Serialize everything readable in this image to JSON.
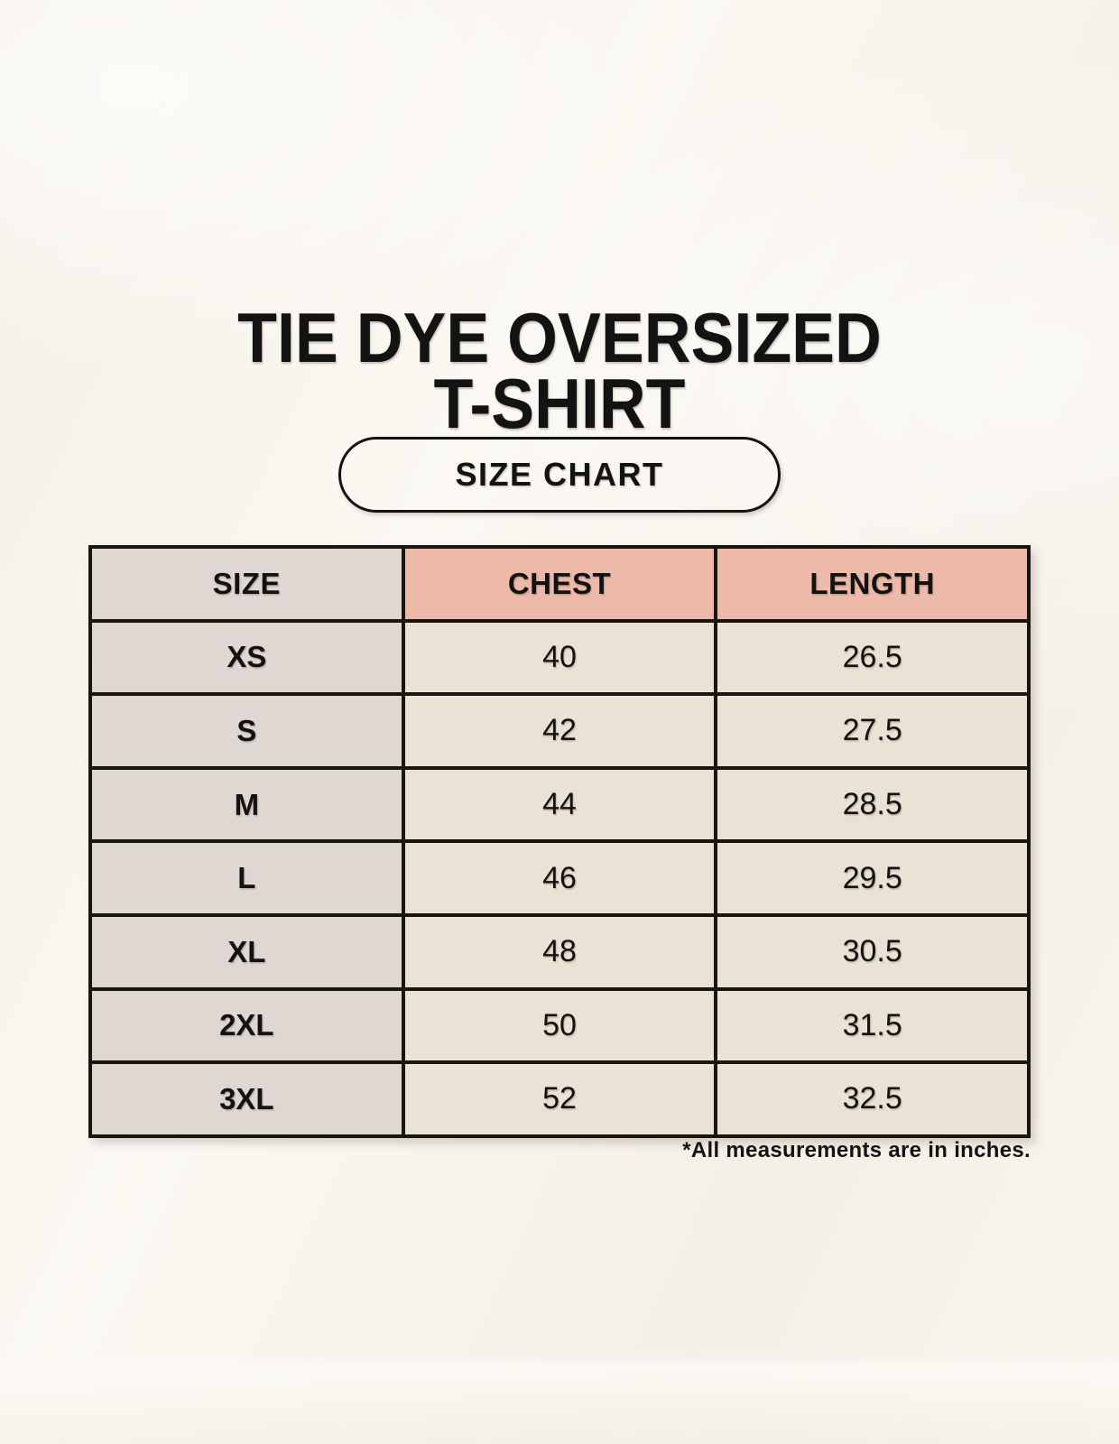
{
  "page": {
    "title_line1": "TIE DYE OVERSIZED",
    "title_line2": "T-SHIRT",
    "badge_label": "SIZE CHART",
    "footnote": "*All measurements are in inches."
  },
  "colors": {
    "background": "#f9f5ed",
    "size_header_bg": "#ded7d2",
    "measure_header_bg": "#edbaa9",
    "size_column_bg": "#ded7d2",
    "value_cell_bg": "#e9e2d5",
    "table_border": "#19150f",
    "text": "#131313"
  },
  "chart_data": {
    "type": "table",
    "title": "TIE DYE OVERSIZED T-SHIRT",
    "subtitle": "SIZE CHART",
    "columns": [
      "SIZE",
      "CHEST",
      "LENGTH"
    ],
    "units": "inches",
    "note": "*All measurements are in inches.",
    "rows": [
      {
        "size": "XS",
        "chest": 40,
        "length": 26.5
      },
      {
        "size": "S",
        "chest": 42,
        "length": 27.5
      },
      {
        "size": "M",
        "chest": 44,
        "length": 28.5
      },
      {
        "size": "L",
        "chest": 46,
        "length": 29.5
      },
      {
        "size": "XL",
        "chest": 48,
        "length": 30.5
      },
      {
        "size": "2XL",
        "chest": 50,
        "length": 31.5
      },
      {
        "size": "3XL",
        "chest": 52,
        "length": 32.5
      }
    ]
  }
}
